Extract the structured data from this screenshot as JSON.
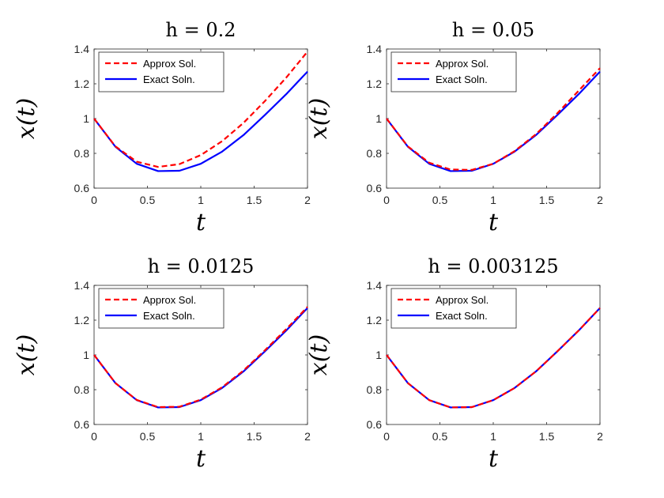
{
  "chart_data": [
    {
      "type": "line",
      "title": "h = 0.2",
      "xlabel": "t",
      "ylabel": "x(t)",
      "xlim": [
        0,
        2
      ],
      "ylim": [
        0.6,
        1.4
      ],
      "xticks": [
        "0",
        "0.5",
        "1",
        "1.5",
        "2"
      ],
      "yticks": [
        "0.6",
        "0.8",
        "1",
        "1.2",
        "1.4"
      ],
      "grid": false,
      "legend_position": "top-left",
      "series": [
        {
          "name": "Approx Sol.",
          "color": "#ff0000",
          "style": "dashed",
          "x": [
            0,
            0.2,
            0.4,
            0.6,
            0.8,
            1.0,
            1.2,
            1.4,
            1.6,
            1.8,
            2.0
          ],
          "y": [
            1.0,
            0.84,
            0.752,
            0.722,
            0.738,
            0.79,
            0.87,
            0.975,
            1.1,
            1.235,
            1.385
          ]
        },
        {
          "name": "Exact Soln.",
          "color": "#0000ff",
          "style": "solid",
          "x": [
            0,
            0.2,
            0.4,
            0.6,
            0.8,
            1.0,
            1.2,
            1.4,
            1.6,
            1.8,
            2.0
          ],
          "y": [
            1.0,
            0.838,
            0.74,
            0.698,
            0.7,
            0.74,
            0.81,
            0.905,
            1.02,
            1.14,
            1.27
          ]
        }
      ]
    },
    {
      "type": "line",
      "title": "h = 0.05",
      "xlabel": "t",
      "ylabel": "x(t)",
      "xlim": [
        0,
        2
      ],
      "ylim": [
        0.6,
        1.4
      ],
      "xticks": [
        "0",
        "0.5",
        "1",
        "1.5",
        "2"
      ],
      "yticks": [
        "0.6",
        "0.8",
        "1",
        "1.2",
        "1.4"
      ],
      "grid": false,
      "legend_position": "top-left",
      "series": [
        {
          "name": "Approx Sol.",
          "color": "#ff0000",
          "style": "dashed",
          "x": [
            0,
            0.2,
            0.4,
            0.6,
            0.8,
            1.0,
            1.2,
            1.4,
            1.6,
            1.8,
            2.0
          ],
          "y": [
            1.0,
            0.84,
            0.746,
            0.707,
            0.705,
            0.74,
            0.813,
            0.91,
            1.03,
            1.16,
            1.29
          ]
        },
        {
          "name": "Exact Soln.",
          "color": "#0000ff",
          "style": "solid",
          "x": [
            0,
            0.2,
            0.4,
            0.6,
            0.8,
            1.0,
            1.2,
            1.4,
            1.6,
            1.8,
            2.0
          ],
          "y": [
            1.0,
            0.838,
            0.74,
            0.698,
            0.7,
            0.74,
            0.81,
            0.905,
            1.02,
            1.14,
            1.27
          ]
        }
      ]
    },
    {
      "type": "line",
      "title": "h = 0.0125",
      "xlabel": "t",
      "ylabel": "x(t)",
      "xlim": [
        0,
        2
      ],
      "ylim": [
        0.6,
        1.4
      ],
      "xticks": [
        "0",
        "0.5",
        "1",
        "1.5",
        "2"
      ],
      "yticks": [
        "0.6",
        "0.8",
        "1",
        "1.2",
        "1.4"
      ],
      "grid": false,
      "legend_position": "top-left",
      "series": [
        {
          "name": "Approx Sol.",
          "color": "#ff0000",
          "style": "dashed",
          "x": [
            0,
            0.2,
            0.4,
            0.6,
            0.8,
            1.0,
            1.2,
            1.4,
            1.6,
            1.8,
            2.0
          ],
          "y": [
            1.0,
            0.838,
            0.741,
            0.7,
            0.702,
            0.743,
            0.814,
            0.91,
            1.026,
            1.148,
            1.276
          ]
        },
        {
          "name": "Exact Soln.",
          "color": "#0000ff",
          "style": "solid",
          "x": [
            0,
            0.2,
            0.4,
            0.6,
            0.8,
            1.0,
            1.2,
            1.4,
            1.6,
            1.8,
            2.0
          ],
          "y": [
            1.0,
            0.838,
            0.74,
            0.698,
            0.7,
            0.74,
            0.81,
            0.905,
            1.02,
            1.14,
            1.27
          ]
        }
      ]
    },
    {
      "type": "line",
      "title": "h = 0.003125",
      "xlabel": "t",
      "ylabel": "x(t)",
      "xlim": [
        0,
        2
      ],
      "ylim": [
        0.6,
        1.4
      ],
      "xticks": [
        "0",
        "0.5",
        "1",
        "1.5",
        "2"
      ],
      "yticks": [
        "0.6",
        "0.8",
        "1",
        "1.2",
        "1.4"
      ],
      "grid": false,
      "legend_position": "top-left",
      "series": [
        {
          "name": "Approx Sol.",
          "color": "#ff0000",
          "style": "dashed",
          "x": [
            0,
            0.2,
            0.4,
            0.6,
            0.8,
            1.0,
            1.2,
            1.4,
            1.6,
            1.8,
            2.0
          ],
          "y": [
            1.0,
            0.838,
            0.74,
            0.698,
            0.7,
            0.74,
            0.81,
            0.905,
            1.02,
            1.14,
            1.27
          ]
        },
        {
          "name": "Exact Soln.",
          "color": "#0000ff",
          "style": "solid",
          "x": [
            0,
            0.2,
            0.4,
            0.6,
            0.8,
            1.0,
            1.2,
            1.4,
            1.6,
            1.8,
            2.0
          ],
          "y": [
            1.0,
            0.838,
            0.74,
            0.698,
            0.7,
            0.74,
            0.81,
            0.905,
            1.02,
            1.14,
            1.27
          ]
        }
      ]
    }
  ]
}
